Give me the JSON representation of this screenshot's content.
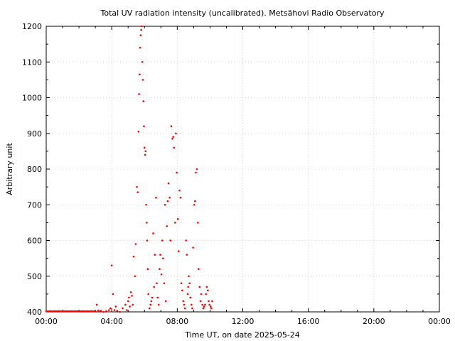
{
  "chart_data": {
    "type": "scatter",
    "title": "Total UV radiation intensity (uncalibrated). Metsähovi Radio Observatory",
    "xlabel": "Time UT, on date 2025-05-24",
    "ylabel": "Arbitrary unit",
    "xlim": [
      "00:00",
      "24:00"
    ],
    "ylim": [
      400,
      1200
    ],
    "x_ticks": [
      "00:00",
      "04:00",
      "08:00",
      "12:00",
      "16:00",
      "20:00",
      "00:00"
    ],
    "y_ticks": [
      400,
      500,
      600,
      700,
      800,
      900,
      1000,
      1100,
      1200
    ],
    "grid": true,
    "point_color": "#ff0000",
    "series": [
      {
        "x": [
          "00:00",
          "00:15",
          "00:30",
          "00:45",
          "01:00",
          "01:15",
          "01:30",
          "01:45",
          "02:00",
          "02:15",
          "02:30",
          "02:45",
          "03:00",
          "03:05",
          "03:10",
          "03:15",
          "03:20",
          "03:30",
          "03:40",
          "03:50",
          "03:55",
          "04:00",
          "04:05",
          "04:10",
          "04:15",
          "04:20",
          "04:30",
          "04:40",
          "04:50",
          "04:55",
          "05:00",
          "05:03",
          "05:06",
          "05:10",
          "05:14",
          "05:17",
          "05:20",
          "05:25",
          "05:28",
          "05:32",
          "05:35",
          "05:38",
          "05:40",
          "05:42",
          "05:44",
          "05:46",
          "05:48",
          "05:50",
          "05:52",
          "05:54",
          "05:56",
          "05:58",
          "06:00",
          "06:02",
          "06:04",
          "06:06",
          "06:08",
          "06:10",
          "06:12",
          "06:14",
          "06:18",
          "06:22",
          "06:25",
          "06:28",
          "06:32",
          "06:35",
          "06:38",
          "06:42",
          "06:45",
          "06:48",
          "06:52",
          "06:55",
          "06:58",
          "07:02",
          "07:05",
          "07:08",
          "07:12",
          "07:15",
          "07:18",
          "07:22",
          "07:25",
          "07:28",
          "07:32",
          "07:35",
          "07:38",
          "07:42",
          "07:45",
          "07:48",
          "07:52",
          "07:55",
          "07:58",
          "08:02",
          "08:05",
          "08:08",
          "08:12",
          "08:15",
          "08:18",
          "08:22",
          "08:25",
          "08:28",
          "08:32",
          "08:35",
          "08:38",
          "08:40",
          "08:42",
          "08:45",
          "08:48",
          "08:52",
          "08:55",
          "08:58",
          "09:02",
          "09:05",
          "09:08",
          "09:12",
          "09:15",
          "09:18",
          "09:22",
          "09:25",
          "09:28",
          "09:32",
          "09:35",
          "09:38",
          "09:42",
          "09:45",
          "09:48",
          "09:52",
          "09:55",
          "09:58",
          "10:02",
          "10:05",
          "10:08"
        ],
        "y": [
          402,
          402,
          402,
          402,
          402,
          402,
          402,
          402,
          402,
          402,
          402,
          402,
          402,
          420,
          404,
          401,
          403,
          400,
          402,
          405,
          410,
          530,
          450,
          405,
          415,
          403,
          400,
          410,
          420,
          405,
          430,
          440,
          415,
          455,
          445,
          420,
          555,
          500,
          590,
          750,
          735,
          905,
          1010,
          1065,
          1140,
          1175,
          1190,
          1200,
          1100,
          1050,
          990,
          920,
          860,
          840,
          850,
          700,
          650,
          600,
          520,
          450,
          410,
          420,
          430,
          440,
          620,
          470,
          560,
          720,
          480,
          440,
          420,
          520,
          560,
          505,
          600,
          550,
          480,
          700,
          430,
          640,
          710,
          760,
          720,
          600,
          920,
          885,
          890,
          860,
          650,
          900,
          790,
          660,
          570,
          740,
          720,
          480,
          460,
          430,
          420,
          410,
          600,
          560,
          450,
          470,
          500,
          480,
          440,
          420,
          410,
          580,
          700,
          710,
          790,
          800,
          650,
          520,
          470,
          430,
          450,
          420,
          410,
          415,
          420,
          450,
          470,
          460,
          430,
          420,
          415,
          410,
          430
        ]
      }
    ]
  }
}
